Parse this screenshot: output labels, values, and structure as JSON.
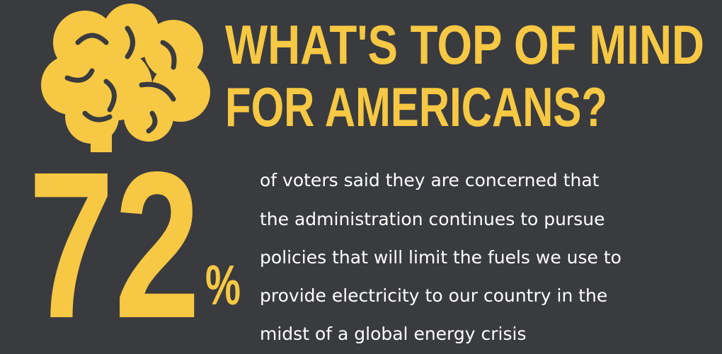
{
  "header": {
    "title_lines": [
      "WHAT'S TOP OF MIND",
      "FOR AMERICANS?"
    ]
  },
  "stat": {
    "value": "72",
    "unit": "%"
  },
  "description_lines": [
    "of voters said they are concerned that",
    "the administration continues to pursue",
    "policies that will limit the fuels we use to",
    "provide electricity to our country in the",
    "midst of a global energy crisis"
  ]
}
